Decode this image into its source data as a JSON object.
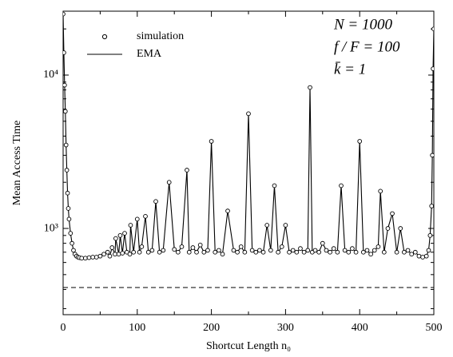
{
  "chart_data": {
    "type": "line",
    "xlabel": "Shortcut Length n₀",
    "ylabel": "Mean Access Time",
    "annotations": [
      "N = 1000",
      "f / F = 100",
      "k̄ = 1"
    ],
    "legend": "upper left",
    "log_y": true,
    "xlim": [
      0,
      500
    ],
    "xticks": [
      0,
      100,
      200,
      300,
      400,
      500
    ],
    "xminor_ticks": [
      50,
      150,
      250,
      350,
      450
    ],
    "ylim": [
      274,
      26100
    ],
    "yticks": [
      {
        "value": 1000,
        "label": "10³"
      },
      {
        "value": 10000,
        "label": "10⁴"
      }
    ],
    "yminor_ticks": [
      300,
      400,
      500,
      600,
      700,
      800,
      900,
      2000,
      3000,
      4000,
      5000,
      6000,
      7000,
      8000,
      9000,
      20000
    ],
    "reference_line": 412,
    "x": [
      0,
      1,
      2,
      3,
      4,
      5,
      6,
      7,
      8,
      10,
      12,
      14,
      16,
      18,
      20,
      22,
      25,
      30,
      35,
      40,
      45,
      50,
      55,
      60,
      63,
      66,
      70,
      71,
      75,
      77,
      80,
      83,
      86,
      90,
      91,
      95,
      100,
      103,
      106,
      111,
      115,
      120,
      125,
      130,
      135,
      143,
      150,
      155,
      160,
      167,
      170,
      175,
      180,
      185,
      190,
      195,
      200,
      205,
      210,
      215,
      222,
      230,
      235,
      240,
      245,
      250,
      255,
      260,
      265,
      270,
      275,
      280,
      285,
      290,
      295,
      300,
      305,
      310,
      315,
      320,
      325,
      330,
      333,
      336,
      340,
      345,
      350,
      355,
      360,
      365,
      370,
      375,
      380,
      385,
      390,
      395,
      400,
      405,
      410,
      415,
      420,
      425,
      428,
      433,
      438,
      444,
      450,
      455,
      460,
      465,
      470,
      475,
      480,
      485,
      490,
      493,
      495,
      497,
      498,
      499,
      500
    ],
    "series": [
      {
        "name": "simulation",
        "color": "#000000",
        "marker": "circle",
        "values": [
          25000,
          14000,
          8600,
          5800,
          3500,
          2400,
          1700,
          1350,
          1150,
          930,
          800,
          720,
          680,
          660,
          650,
          645,
          640,
          640,
          645,
          650,
          650,
          660,
          680,
          700,
          660,
          750,
          680,
          860,
          680,
          900,
          690,
          930,
          700,
          680,
          1050,
          700,
          1150,
          700,
          760,
          1200,
          700,
          720,
          1500,
          700,
          720,
          2000,
          730,
          700,
          760,
          2400,
          700,
          750,
          700,
          780,
          700,
          720,
          3700,
          700,
          720,
          680,
          1300,
          720,
          700,
          760,
          700,
          5600,
          720,
          700,
          720,
          700,
          1050,
          720,
          1900,
          700,
          760,
          1050,
          700,
          720,
          700,
          740,
          700,
          720,
          8300,
          700,
          720,
          700,
          800,
          720,
          700,
          740,
          700,
          1900,
          720,
          700,
          740,
          700,
          3700,
          700,
          720,
          680,
          720,
          760,
          1750,
          700,
          1000,
          1250,
          700,
          1000,
          700,
          720,
          680,
          700,
          660,
          650,
          660,
          720,
          900,
          1400,
          3000,
          11000,
          20000
        ]
      },
      {
        "name": "EMA",
        "color": "#000000",
        "marker": "line",
        "values": [
          25000,
          14000,
          8600,
          5800,
          3500,
          2400,
          1700,
          1350,
          1150,
          930,
          800,
          720,
          680,
          660,
          650,
          645,
          640,
          640,
          645,
          650,
          650,
          660,
          680,
          700,
          660,
          750,
          680,
          860,
          680,
          900,
          690,
          930,
          700,
          680,
          1050,
          700,
          1150,
          700,
          760,
          1200,
          700,
          720,
          1500,
          700,
          720,
          2000,
          730,
          700,
          760,
          2400,
          700,
          750,
          700,
          780,
          700,
          720,
          3700,
          700,
          720,
          680,
          1300,
          720,
          700,
          760,
          700,
          5600,
          720,
          700,
          720,
          700,
          1050,
          720,
          1900,
          700,
          760,
          1050,
          700,
          720,
          700,
          740,
          700,
          720,
          8300,
          700,
          720,
          700,
          800,
          720,
          700,
          740,
          700,
          1900,
          720,
          700,
          740,
          700,
          3700,
          700,
          720,
          680,
          720,
          760,
          1750,
          700,
          1000,
          1250,
          700,
          1000,
          700,
          720,
          680,
          700,
          660,
          650,
          660,
          720,
          900,
          1400,
          3000,
          11000,
          20000
        ]
      }
    ]
  }
}
